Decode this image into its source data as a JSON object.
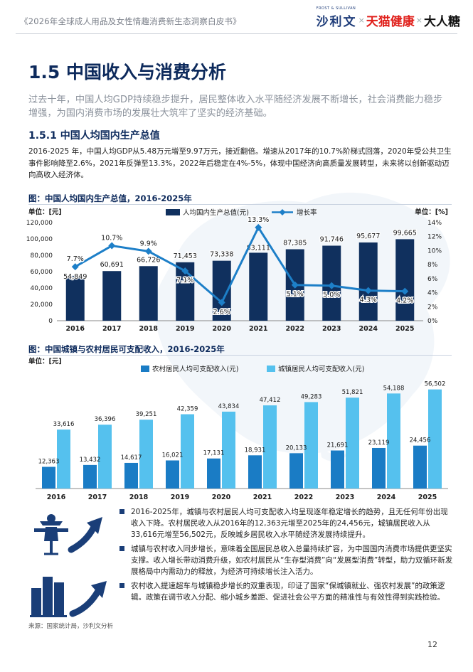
{
  "header": {
    "report_title": "《2026年全球成人用品及女性情趣消费新生态洞察白皮书》",
    "logo_frost_small": "FROST & SULLIVAN",
    "logo_frost": "沙利文",
    "logo_sep1": "×",
    "logo_tmall": "天猫健康",
    "logo_sep2": "×",
    "logo_dari": "大人糖"
  },
  "section": {
    "title": "1.5 中国收入与消费分析",
    "intro": "过去十年，中国人均GDP持续稳步提升，居民整体收入水平随经济发展不断增长，社会消费能力稳步增强，为国内消费市场的发展壮大筑牢了坚实的经济基础。"
  },
  "subsection": {
    "title": "1.5.1 中国人均国内生产总值",
    "body": "2016-2025 年，中国人均GDP从5.48万元增至9.97万元，接近翻倍。增速从2017年的10.7%阶梯式回落，2020年受公共卫生事件影响降至2.6%，2021年反弹至13.3%，2022年后稳定在4%-5%，体现中国经济向高质量发展转型，未来将以创新驱动迈向高收入经济体。"
  },
  "figure1_title": "图：中国人均国内生产总值，2016-2025年",
  "figure2_title": "图：中国城镇与农村居民可支配收入，2016-2025年",
  "chart_data": [
    {
      "type": "bar",
      "title": "中国人均国内生产总值，2016-2025年",
      "categories": [
        "2016",
        "2017",
        "2018",
        "2019",
        "2020",
        "2021",
        "2022",
        "2023",
        "2024",
        "2025"
      ],
      "series": [
        {
          "name": "人均国内生产总值(元)",
          "type": "bar",
          "axis": "left",
          "values": [
            54849,
            60691,
            66726,
            71453,
            73338,
            83111,
            87385,
            91746,
            95677,
            99665
          ],
          "labels": [
            "54,849",
            "60,691",
            "66,726",
            "71,453",
            "73,338",
            "83,111",
            "87,385",
            "91,746",
            "95,677",
            "99,665"
          ]
        },
        {
          "name": "增长率",
          "type": "line",
          "axis": "right",
          "values": [
            7.7,
            10.7,
            9.9,
            7.1,
            2.6,
            13.3,
            5.1,
            5.0,
            4.3,
            4.2
          ],
          "labels": [
            "7.7%",
            "10.7%",
            "9.9%",
            "7.1%",
            "2.6%",
            "13.3%",
            "5.1%",
            "5.0%",
            "4.3%",
            "4.2%"
          ]
        }
      ],
      "ylabel_left": "单位：[元]",
      "ylabel_right": "单位：[%]",
      "ylim_left": [
        0,
        120000
      ],
      "ylim_right": [
        0,
        14
      ],
      "yticks_left": [
        "0",
        "20,000",
        "40,000",
        "60,000",
        "80,000",
        "100,000",
        "120,000"
      ],
      "yticks_right": [
        "0%",
        "2%",
        "4%",
        "6%",
        "8%",
        "10%",
        "12%",
        "14%"
      ],
      "colors": {
        "bar": "#10305e",
        "line": "#1d7fc8"
      }
    },
    {
      "type": "bar",
      "title": "中国城镇与农村居民可支配收入，2016-2025年",
      "categories": [
        "2016",
        "2017",
        "2018",
        "2019",
        "2020",
        "2021",
        "2022",
        "2023",
        "2024",
        "2025"
      ],
      "series": [
        {
          "name": "农村居民人均可支配收入(元)",
          "values": [
            12363,
            13432,
            14617,
            16021,
            17131,
            18931,
            20133,
            21691,
            23119,
            24456
          ],
          "labels": [
            "12,363",
            "13,432",
            "14,617",
            "16,021",
            "17,131",
            "18,931",
            "20,133",
            "21,691",
            "23,119",
            "24,456"
          ]
        },
        {
          "name": "城镇居民人均可支配收入(元)",
          "values": [
            33616,
            36396,
            39251,
            42359,
            43834,
            47412,
            49283,
            51821,
            54188,
            56502
          ],
          "labels": [
            "33,616",
            "36,396",
            "39,251",
            "42,359",
            "43,834",
            "47,412",
            "49,283",
            "51,821",
            "54,188",
            "56,502"
          ]
        }
      ],
      "ylabel": "单位：[元]",
      "ylim": [
        0,
        60000
      ],
      "colors": {
        "rural": "#1a7cc5",
        "urban": "#55c1ee"
      }
    }
  ],
  "bullets": [
    "2016-2025年，城镇与农村居民人均可支配收入均呈现逐年稳定增长的趋势，且无任何年份出现收入下降。农村居民收入从2016年的12,363元增至2025年的24,456元，城镇居民收入从33,616元增至56,502元，反映城乡居民收入水平随经济发展持续提升。",
    "城镇与农村收入同步增长，意味着全国居民总收入总量持续扩容，为中国国内消费市场提供更坚实支撑。收入增长带动消费升级，如农村居民从“生存型消费”向“发展型消费”转型，助力双循环新发展格局中内需动力的释放，为经济可持续增长注入活力。",
    "农村收入提速超车与城镇稳步增长的双重表现，印证了国家“保城镇就业、强农村发展”的政策逻辑。政策在调节收入分配、缩小城乡差距、促进社会公平方面的精准性与有效性得到实践检验。"
  ],
  "source": "来源：国家统计局，沙利文分析",
  "page_number": "12",
  "icons": [
    "scarecrow-icon",
    "growth-arrow-icon",
    "buildings-icon"
  ]
}
